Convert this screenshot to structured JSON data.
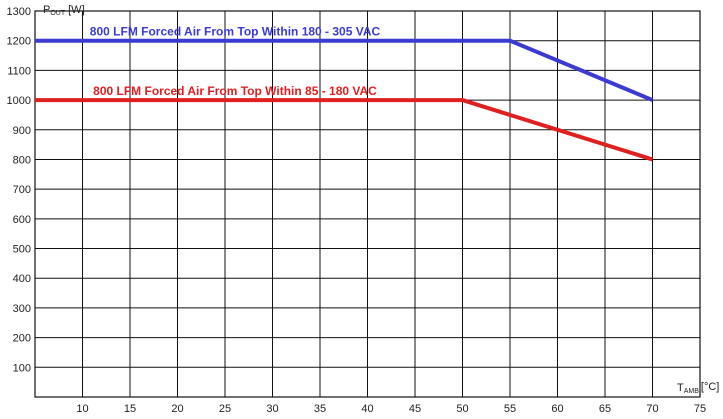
{
  "chart_data": {
    "type": "line",
    "title": "",
    "ylabel": {
      "main": "P",
      "sub": "OUT",
      "unit": "[W]"
    },
    "xlabel": {
      "main": "T",
      "sub": "AMB",
      "unit": "[°C]"
    },
    "xlim": [
      5,
      75
    ],
    "ylim": [
      0,
      1300
    ],
    "x_ticks": [
      10,
      15,
      20,
      25,
      30,
      35,
      40,
      45,
      50,
      55,
      60,
      65,
      70,
      75
    ],
    "y_ticks": [
      100,
      200,
      300,
      400,
      500,
      600,
      700,
      800,
      900,
      1000,
      1100,
      1200,
      1300
    ],
    "grid": true,
    "series": [
      {
        "name": "800 LFM Forced Air From Top Within 180 - 305 VAC",
        "color": "#3b3bd1",
        "x": [
          5,
          55,
          70
        ],
        "y": [
          1200,
          1200,
          1000
        ]
      },
      {
        "name": "800 LFM Forced Air From Top Within 85 - 180 VAC",
        "color": "#e02020",
        "x": [
          5,
          50,
          70
        ],
        "y": [
          1000,
          1000,
          800
        ]
      }
    ]
  }
}
